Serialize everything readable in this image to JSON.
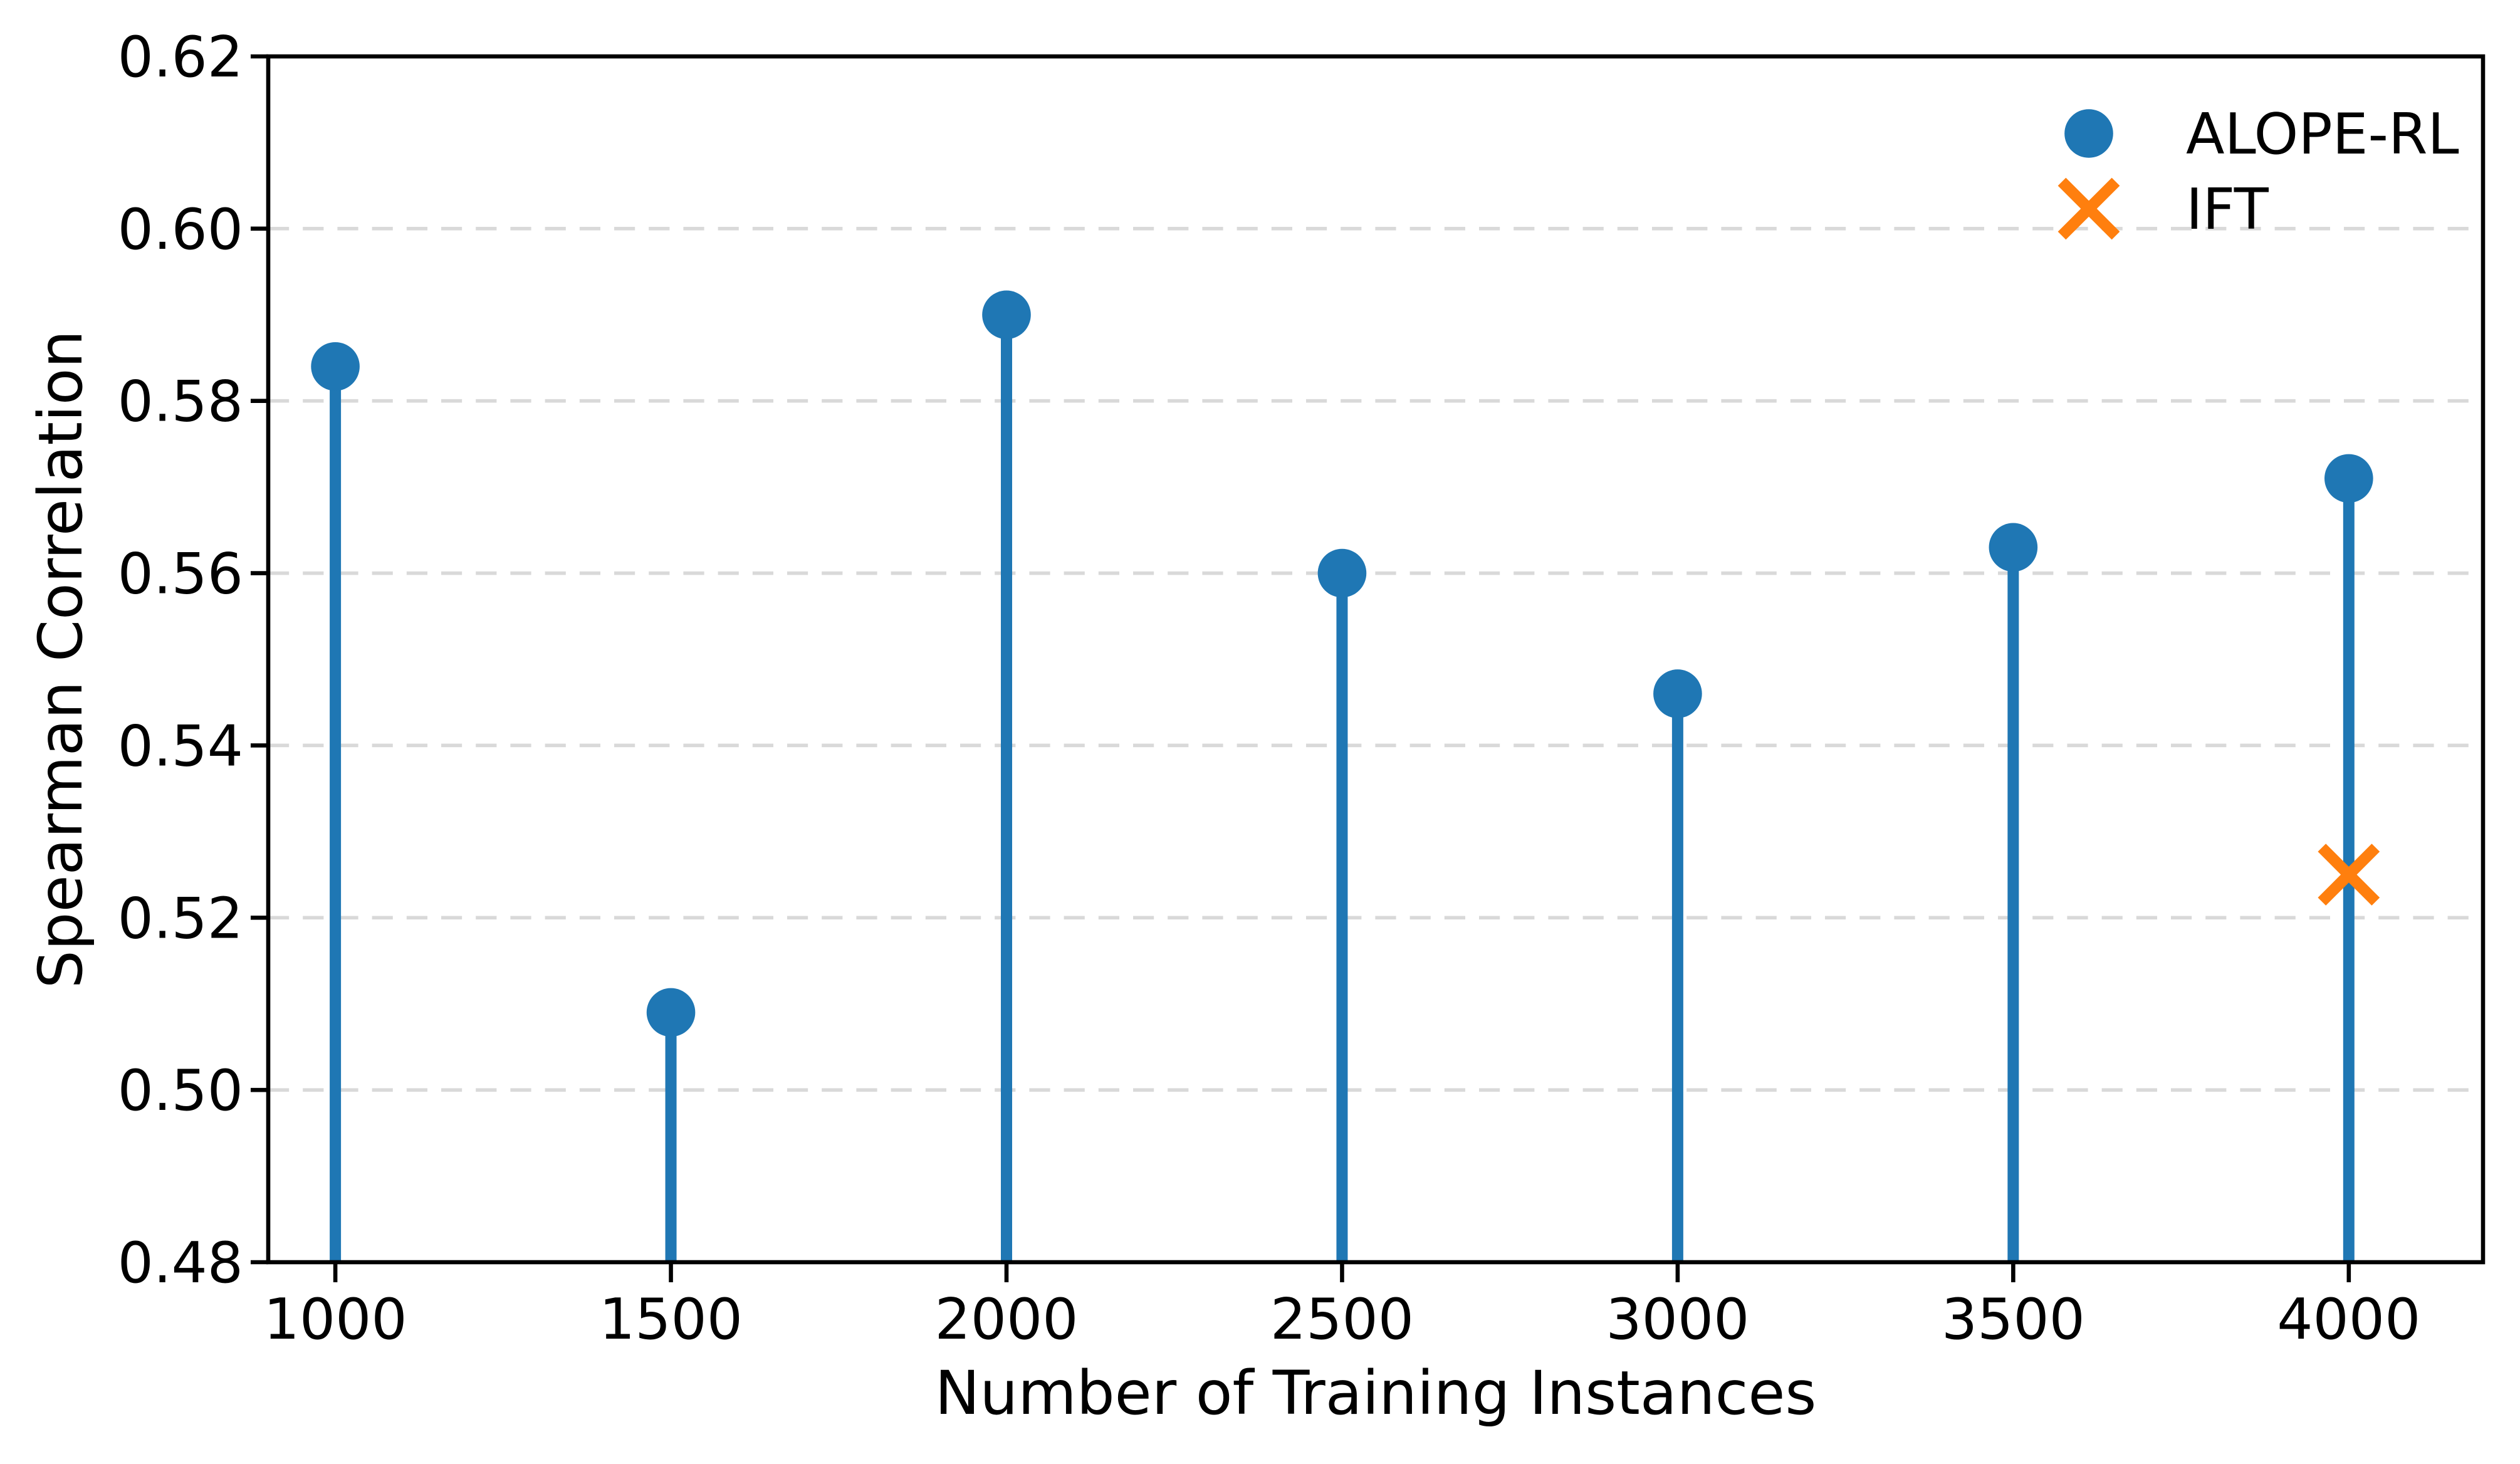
{
  "figure": {
    "background": "#ffffff",
    "accent_blue": "#1f77b4",
    "accent_orange": "#ff7f0e",
    "gridline_color": "#d9d9d9",
    "spine_color": "#000000"
  },
  "chart_data": {
    "type": "stem",
    "title": "",
    "xlabel": "Number of Training Instances",
    "ylabel": "Spearman Correlation",
    "x": [
      1000,
      1500,
      2000,
      2500,
      3000,
      3500,
      4000
    ],
    "series": [
      {
        "name": "ALOPE-RL",
        "marker": "circle",
        "color": "#1f77b4",
        "values": [
          0.584,
          0.509,
          0.59,
          0.56,
          0.546,
          0.563,
          0.571
        ]
      },
      {
        "name": "IFT",
        "marker": "x",
        "color": "#ff7f0e",
        "points": [
          {
            "x": 4000,
            "y": 0.525
          }
        ]
      }
    ],
    "stem_baseline": 0.48,
    "xlim": [
      900,
      4200
    ],
    "ylim": [
      0.48,
      0.62
    ],
    "xticks": {
      "values": [
        1000,
        1500,
        2000,
        2500,
        3000,
        3500,
        4000
      ],
      "labels": [
        "1000",
        "1500",
        "2000",
        "2500",
        "3000",
        "3500",
        "4000"
      ]
    },
    "yticks": {
      "values": [
        0.48,
        0.5,
        0.52,
        0.54,
        0.56,
        0.58,
        0.6,
        0.62
      ],
      "labels": [
        "0.48",
        "0.50",
        "0.52",
        "0.54",
        "0.56",
        "0.58",
        "0.60",
        "0.62"
      ]
    },
    "grid": {
      "axis": "y",
      "style": "dashed",
      "color": "#d9d9d9",
      "on": true
    },
    "legend": {
      "position": "upper-right",
      "frame": false,
      "entries": [
        {
          "label": "ALOPE-RL",
          "marker": "circle",
          "color": "#1f77b4"
        },
        {
          "label": "IFT",
          "marker": "x",
          "color": "#ff7f0e"
        }
      ]
    }
  }
}
